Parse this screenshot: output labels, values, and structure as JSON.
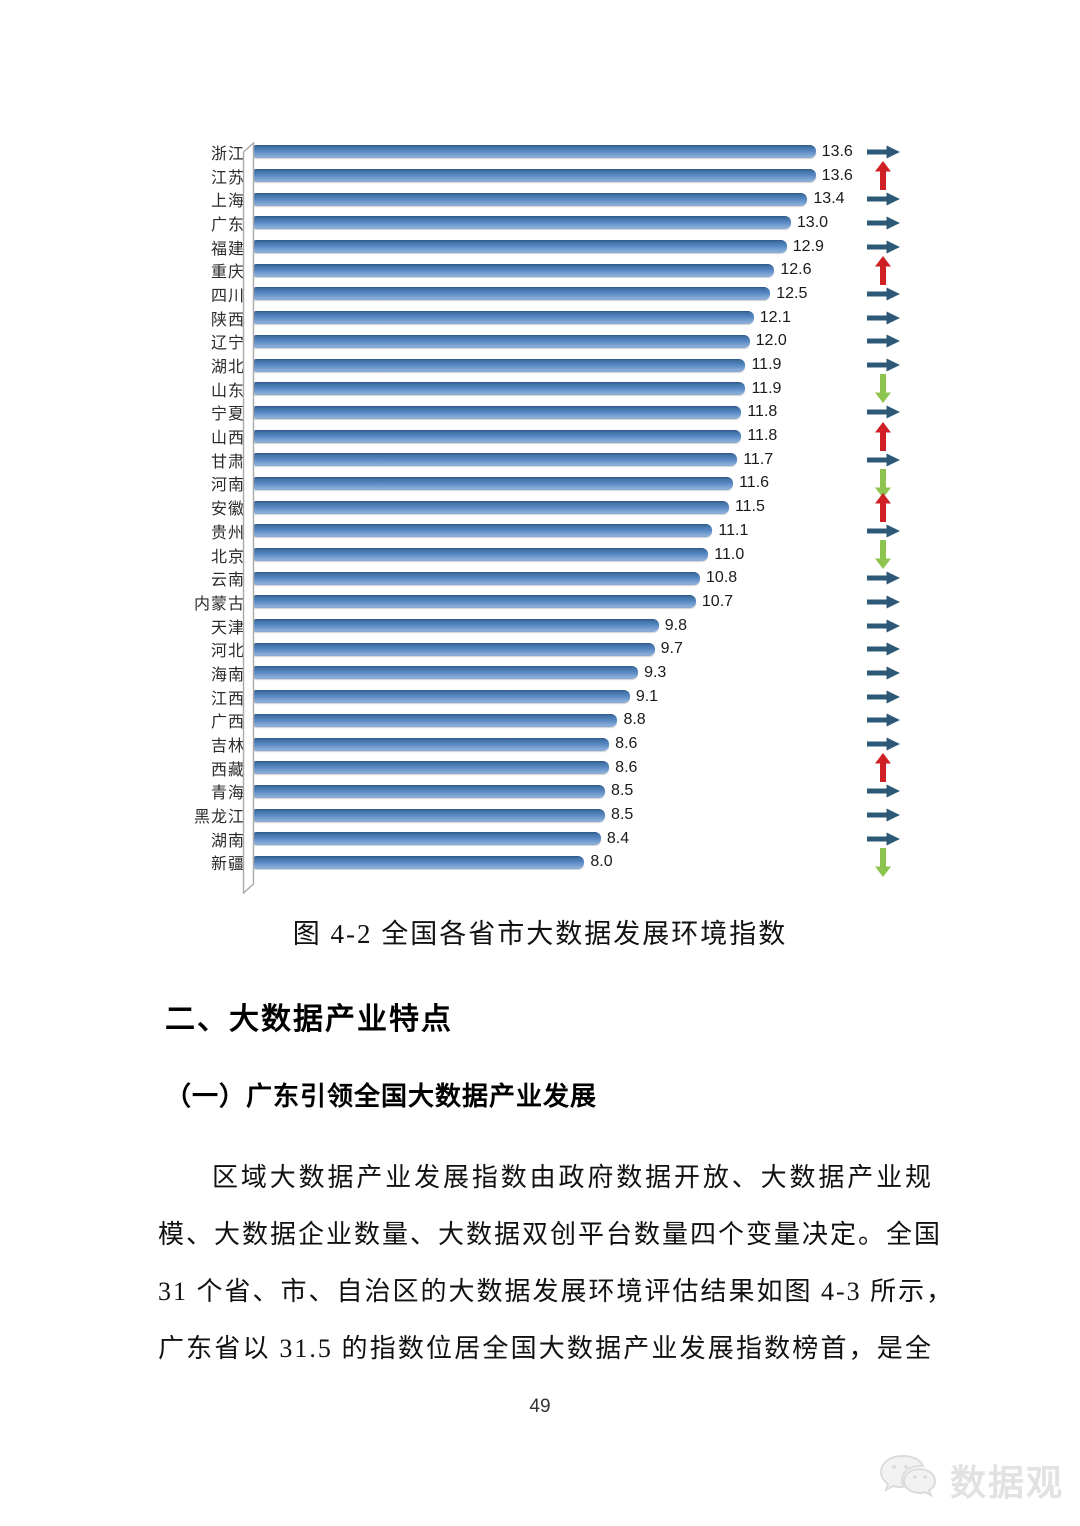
{
  "figure": {
    "caption": "图 4-2 全国各省市大数据发展环境指数"
  },
  "chart_data": {
    "type": "bar",
    "orientation": "horizontal",
    "title": "",
    "xlabel": "",
    "ylabel": "",
    "xlim": [
      0,
      14.5
    ],
    "grid": false,
    "legend": "none",
    "categories": [
      "浙江",
      "江苏",
      "上海",
      "广东",
      "福建",
      "重庆",
      "四川",
      "陕西",
      "辽宁",
      "湖北",
      "山东",
      "宁夏",
      "山西",
      "甘肃",
      "河南",
      "安徽",
      "贵州",
      "北京",
      "云南",
      "内蒙古",
      "天津",
      "河北",
      "海南",
      "江西",
      "广西",
      "吉林",
      "西藏",
      "青海",
      "黑龙江",
      "湖南",
      "新疆"
    ],
    "values": [
      13.6,
      13.6,
      13.4,
      13.0,
      12.9,
      12.6,
      12.5,
      12.1,
      12.0,
      11.9,
      11.9,
      11.8,
      11.8,
      11.7,
      11.6,
      11.5,
      11.1,
      11.0,
      10.8,
      10.7,
      9.8,
      9.7,
      9.3,
      9.1,
      8.8,
      8.6,
      8.6,
      8.5,
      8.5,
      8.4,
      8.0
    ],
    "value_labels": [
      "13.6",
      "13.6",
      "13.4",
      "13.0",
      "12.9",
      "12.6",
      "12.5",
      "12.1",
      "12.0",
      "11.9",
      "11.9",
      "11.8",
      "11.8",
      "11.7",
      "11.6",
      "11.5",
      "11.1",
      "11.0",
      "10.8",
      "10.7",
      "9.8",
      "9.7",
      "9.3",
      "9.1",
      "8.8",
      "8.6",
      "8.6",
      "8.5",
      "8.5",
      "8.4",
      "8.0"
    ],
    "trends": [
      "right",
      "up",
      "right",
      "right",
      "right",
      "up",
      "right",
      "right",
      "right",
      "right",
      "down",
      "right",
      "up",
      "right",
      "down",
      "up",
      "right",
      "down",
      "right",
      "right",
      "right",
      "right",
      "right",
      "right",
      "right",
      "right",
      "up",
      "right",
      "right",
      "right",
      "down"
    ],
    "colors": {
      "bar": "#4f81bd",
      "trend_right": "#2e5877",
      "trend_up": "#cf2026",
      "trend_down": "#8dc450",
      "axis": "#a9a9a9"
    }
  },
  "sections": {
    "heading2": "二、大数据产业特点",
    "heading3": "（一）广东引领全国大数据产业发展",
    "paragraph_lines": [
      "区域大数据产业发展指数由政府数据开放、大数据产业规",
      "模、大数据企业数量、大数据双创平台数量四个变量决定。全国",
      "31 个省、市、自治区的大数据发展环境评估结果如图 4-3 所示，",
      "广东省以 31.5 的指数位居全国大数据产业发展指数榜首，是全"
    ]
  },
  "footer": {
    "page_number": "49",
    "watermark": "数据观"
  }
}
